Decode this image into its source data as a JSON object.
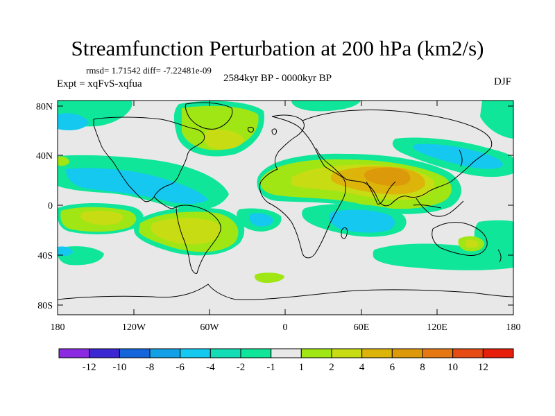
{
  "title": "Streamfunction Perturbation at 200 hPa (km2/s)",
  "stats": "rmsd= 1.71542  diff= -7.22481e-09",
  "period": "2584kyr BP - 0000kyr BP",
  "experiment": "Expt = xqFvS-xqfua",
  "season": "DJF",
  "lat_labels": [
    "80N",
    "40N",
    "0",
    "40S",
    "80S"
  ],
  "lon_labels": [
    "180",
    "120W",
    "60W",
    "0",
    "60E",
    "120E",
    "180"
  ],
  "colorbar": {
    "colors": [
      "#8a2be2",
      "#3c28d2",
      "#1464dc",
      "#14a0e6",
      "#14c8f0",
      "#14dcb4",
      "#10e69a",
      "#e8e8e8",
      "#a0e614",
      "#c8dc14",
      "#dcb40a",
      "#dc9a0a",
      "#e67814",
      "#e64b14",
      "#e61e0a"
    ],
    "labels": [
      "-12",
      "-10",
      "-8",
      "-6",
      "-4",
      "-2",
      "-1",
      "1",
      "2",
      "4",
      "6",
      "8",
      "10",
      "12"
    ]
  },
  "field_colors": {
    "background": "#e8e8e8",
    "green": "#10e69a",
    "cyan": "#14c8f0",
    "lime": "#a0e614",
    "yellow": "#c8dc14",
    "orange": "#dcb40a",
    "dark_orange": "#dc9a0a"
  }
}
